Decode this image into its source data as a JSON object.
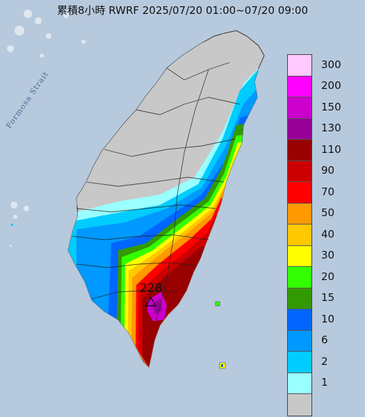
{
  "title": "累積8小時 RWRF 2025/07/20 01:00~07/20 09:00",
  "strait_label": "Formosa Strait",
  "peak_label": "228",
  "legend": {
    "values": [
      "300",
      "200",
      "150",
      "130",
      "110",
      "90",
      "70",
      "50",
      "40",
      "30",
      "20",
      "15",
      "10",
      "6",
      "2",
      "1"
    ],
    "colors": [
      "#ffc8ff",
      "#ff00ff",
      "#cc00cc",
      "#990099",
      "#990000",
      "#cc0000",
      "#ff0000",
      "#ff9900",
      "#ffc800",
      "#ffff00",
      "#33ff00",
      "#339900",
      "#0066ff",
      "#0099ff",
      "#00ccff",
      "#99ffff",
      "#c8c8c8"
    ]
  }
}
